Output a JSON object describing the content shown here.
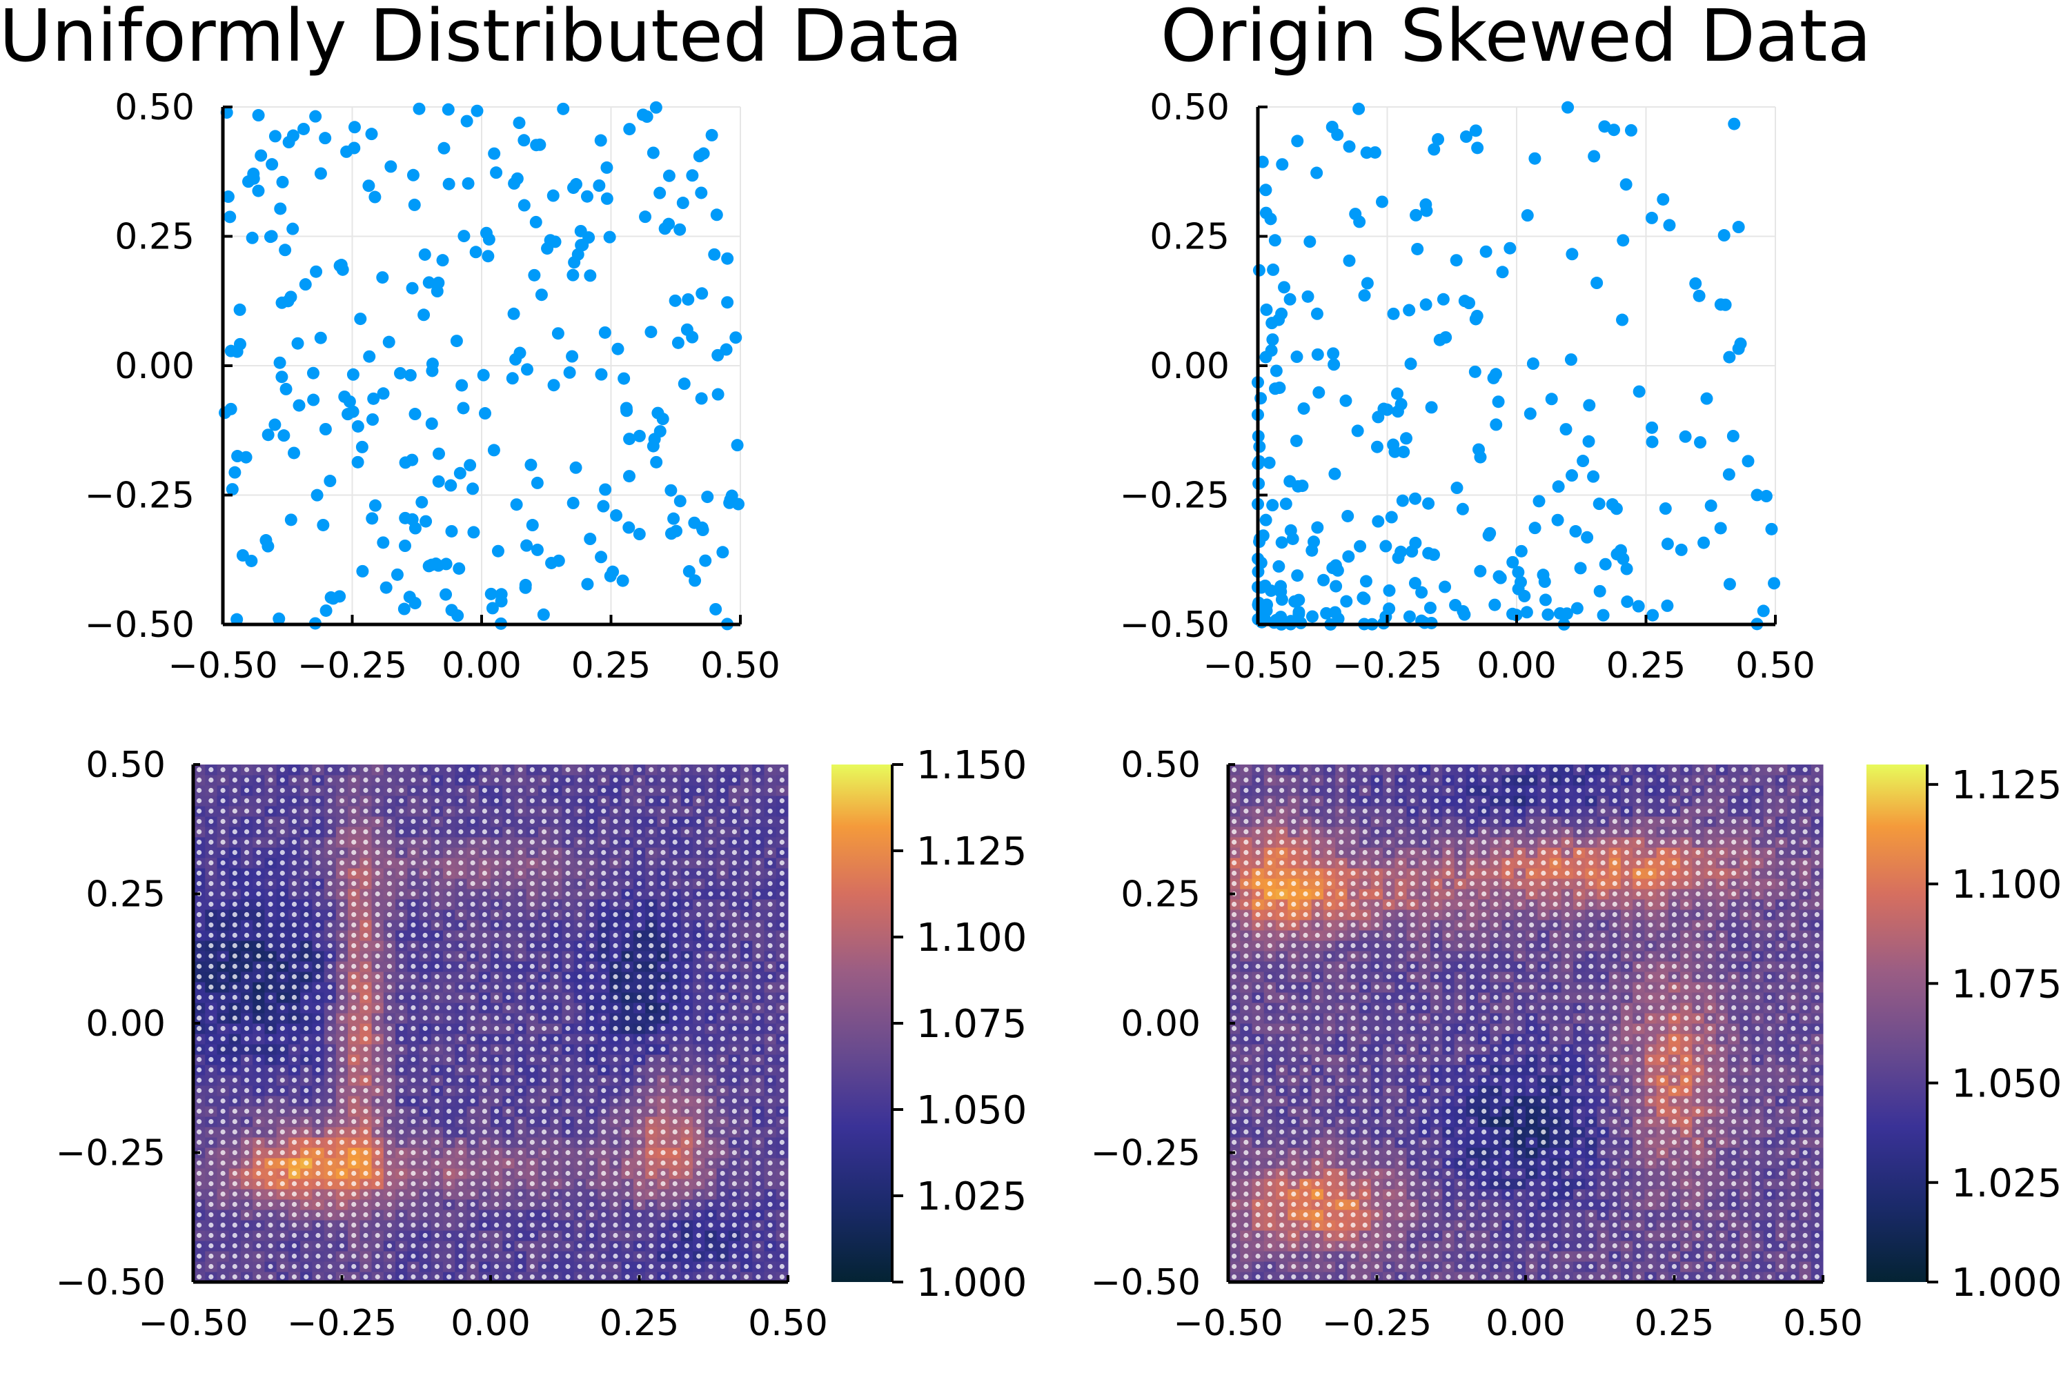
{
  "figure": {
    "colors": {
      "point": "#009af9",
      "grid": "#e6e6e6",
      "axis": "#000000",
      "background": "#ffffff"
    }
  },
  "panels": {
    "uniform": {
      "title": "Uniformly Distributed Data",
      "xticks": [
        "−0.50",
        "−0.25",
        "0.00",
        "0.25",
        "0.50"
      ],
      "yticks": [
        "−0.50",
        "−0.25",
        "0.00",
        "0.25",
        "0.50"
      ]
    },
    "skewed": {
      "title": "Origin Skewed Data",
      "xticks": [
        "−0.50",
        "−0.25",
        "0.00",
        "0.25",
        "0.50"
      ],
      "yticks": [
        "−0.50",
        "−0.25",
        "0.00",
        "0.25",
        "0.50"
      ]
    },
    "heat_uniform": {
      "xticks": [
        "−0.50",
        "−0.25",
        "0.00",
        "0.25",
        "0.50"
      ],
      "yticks": [
        "−0.50",
        "−0.25",
        "0.00",
        "0.25",
        "0.50"
      ],
      "colorbar_ticks": [
        "1.000",
        "1.025",
        "1.050",
        "1.075",
        "1.100",
        "1.125",
        "1.150"
      ]
    },
    "heat_skewed": {
      "xticks": [
        "−0.50",
        "−0.25",
        "0.00",
        "0.25",
        "0.50"
      ],
      "yticks": [
        "−0.50",
        "−0.25",
        "0.00",
        "0.25",
        "0.50"
      ],
      "colorbar_ticks": [
        "1.000",
        "1.025",
        "1.050",
        "1.075",
        "1.100",
        "1.125"
      ]
    }
  },
  "chart_data": [
    {
      "type": "scatter",
      "title": "Uniformly Distributed Data",
      "xlim": [
        -0.5,
        0.5
      ],
      "ylim": [
        -0.5,
        0.5
      ],
      "grid": true,
      "color": "#009af9",
      "seed": 7,
      "n_points": 300,
      "distribution": "uniform"
    },
    {
      "type": "scatter",
      "title": "Origin Skewed Data",
      "xlim": [
        -0.5,
        0.5
      ],
      "ylim": [
        -0.5,
        0.5
      ],
      "grid": true,
      "color": "#009af9",
      "seed": 21,
      "n_points": 300,
      "distribution": "skewed toward (-0.5, -0.5)"
    },
    {
      "type": "heatmap",
      "xlim": [
        -0.5,
        0.5
      ],
      "ylim": [
        -0.5,
        0.5
      ],
      "grid_size": 50,
      "colormap": "thermal",
      "clim": [
        1.0,
        1.15
      ],
      "colorbar_ticks": [
        1.0,
        1.025,
        1.05,
        1.075,
        1.1,
        1.125,
        1.15
      ],
      "baseline": 1.058,
      "hotspots": [
        {
          "x": -0.22,
          "y": 0.05,
          "sx": 0.03,
          "sy": 0.25,
          "amp": 0.055
        },
        {
          "x": -0.32,
          "y": -0.28,
          "sx": 0.08,
          "sy": 0.06,
          "amp": 0.05
        },
        {
          "x": 0.3,
          "y": -0.22,
          "sx": 0.05,
          "sy": 0.1,
          "amp": 0.045
        },
        {
          "x": -0.1,
          "y": -0.28,
          "sx": 0.25,
          "sy": 0.04,
          "amp": 0.03
        },
        {
          "x": 0.0,
          "y": 0.3,
          "sx": 0.15,
          "sy": 0.04,
          "amp": 0.025
        }
      ],
      "coldspots": [
        {
          "x": -0.4,
          "y": 0.1,
          "sx": 0.12,
          "sy": 0.12,
          "amp": 0.03
        },
        {
          "x": 0.25,
          "y": 0.08,
          "sx": 0.06,
          "sy": 0.12,
          "amp": 0.03
        },
        {
          "x": 0.35,
          "y": -0.42,
          "sx": 0.06,
          "sy": 0.05,
          "amp": 0.025
        }
      ]
    },
    {
      "type": "heatmap",
      "xlim": [
        -0.5,
        0.5
      ],
      "ylim": [
        -0.5,
        0.5
      ],
      "grid_size": 50,
      "colormap": "thermal",
      "clim": [
        1.0,
        1.13
      ],
      "colorbar_ticks": [
        1.0,
        1.025,
        1.05,
        1.075,
        1.1,
        1.125
      ],
      "baseline": 1.055,
      "hotspots": [
        {
          "x": -0.42,
          "y": 0.28,
          "sx": 0.08,
          "sy": 0.08,
          "amp": 0.045
        },
        {
          "x": 0.15,
          "y": 0.3,
          "sx": 0.18,
          "sy": 0.05,
          "amp": 0.045
        },
        {
          "x": -0.35,
          "y": -0.35,
          "sx": 0.1,
          "sy": 0.06,
          "amp": 0.05
        },
        {
          "x": 0.25,
          "y": -0.1,
          "sx": 0.06,
          "sy": 0.15,
          "amp": 0.04
        },
        {
          "x": -0.25,
          "y": 0.25,
          "sx": 0.15,
          "sy": 0.05,
          "amp": 0.025
        }
      ],
      "coldspots": [
        {
          "x": 0.0,
          "y": -0.2,
          "sx": 0.1,
          "sy": 0.1,
          "amp": 0.03
        },
        {
          "x": 0.0,
          "y": 0.45,
          "sx": 0.15,
          "sy": 0.05,
          "amp": 0.02
        }
      ]
    }
  ]
}
